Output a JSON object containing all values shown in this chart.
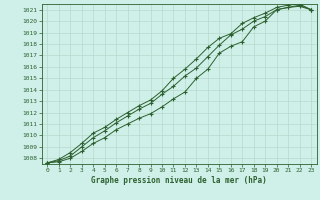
{
  "title": "Graphe pression niveau de la mer (hPa)",
  "bg_color": "#cff0e8",
  "grid_color": "#b8d8cc",
  "line_color": "#2d6030",
  "xlim": [
    -0.5,
    23.5
  ],
  "ylim": [
    1007.5,
    1021.5
  ],
  "yticks": [
    1008,
    1009,
    1010,
    1011,
    1012,
    1013,
    1014,
    1015,
    1016,
    1017,
    1018,
    1019,
    1020,
    1021
  ],
  "xticks": [
    0,
    1,
    2,
    3,
    4,
    5,
    6,
    7,
    8,
    9,
    10,
    11,
    12,
    13,
    14,
    15,
    16,
    17,
    18,
    19,
    20,
    21,
    22,
    23
  ],
  "line1_x": [
    0,
    1,
    2,
    3,
    4,
    5,
    6,
    7,
    8,
    9,
    10,
    11,
    12,
    13,
    14,
    15,
    16,
    17,
    18,
    19,
    20,
    21,
    22,
    23
  ],
  "line1_y": [
    1007.6,
    1007.7,
    1008.0,
    1008.6,
    1009.3,
    1009.8,
    1010.5,
    1011.0,
    1011.5,
    1011.9,
    1012.5,
    1013.2,
    1013.8,
    1015.0,
    1015.8,
    1017.2,
    1017.8,
    1018.2,
    1019.5,
    1020.0,
    1021.0,
    1021.2,
    1021.3,
    1021.0
  ],
  "line2_x": [
    0,
    1,
    2,
    3,
    4,
    5,
    6,
    7,
    8,
    9,
    10,
    11,
    12,
    13,
    14,
    15,
    16,
    17,
    18,
    19,
    20,
    21,
    22,
    23
  ],
  "line2_y": [
    1007.6,
    1007.8,
    1008.2,
    1009.0,
    1009.8,
    1010.4,
    1011.1,
    1011.7,
    1012.3,
    1012.8,
    1013.6,
    1014.3,
    1015.2,
    1015.9,
    1016.9,
    1017.9,
    1018.8,
    1019.3,
    1020.0,
    1020.4,
    1021.0,
    1021.2,
    1021.4,
    1021.0
  ],
  "line3_x": [
    0,
    1,
    2,
    3,
    4,
    5,
    6,
    7,
    8,
    9,
    10,
    11,
    12,
    13,
    14,
    15,
    16,
    17,
    18,
    19,
    20,
    21,
    22,
    23
  ],
  "line3_y": [
    1007.6,
    1007.9,
    1008.5,
    1009.3,
    1010.2,
    1010.7,
    1011.4,
    1012.0,
    1012.6,
    1013.1,
    1013.9,
    1015.0,
    1015.8,
    1016.7,
    1017.7,
    1018.5,
    1018.9,
    1019.8,
    1020.3,
    1020.7,
    1021.2,
    1021.4,
    1021.5,
    1021.0
  ]
}
